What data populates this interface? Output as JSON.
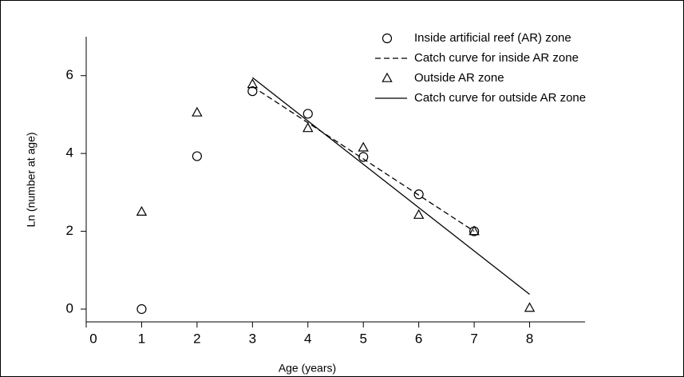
{
  "chart_data": {
    "type": "scatter",
    "x_label": "Age (years)",
    "y_label": "Ln (number at age)",
    "xlim": [
      0,
      9
    ],
    "ylim": [
      -0.3,
      7
    ],
    "xticks": [
      0,
      1,
      2,
      3,
      4,
      5,
      6,
      7,
      8
    ],
    "yticks": [
      0,
      2,
      4,
      6
    ],
    "legend": "top-right",
    "series": [
      {
        "name": "Inside artificial reef (AR) zone",
        "marker": "circle",
        "color": "#000000",
        "x": [
          1,
          2,
          3,
          4,
          5,
          6,
          7
        ],
        "values": [
          0,
          3.93,
          5.6,
          5.02,
          3.91,
          2.95,
          2.0
        ]
      },
      {
        "name": "Catch curve for inside AR zone",
        "line": "dashed",
        "color": "#000000",
        "x": [
          3,
          7
        ],
        "values": [
          5.72,
          2.0
        ]
      },
      {
        "name": "Outside AR zone",
        "marker": "triangle",
        "color": "#000000",
        "x": [
          1,
          2,
          3,
          4,
          5,
          6,
          7,
          8
        ],
        "values": [
          2.5,
          5.05,
          5.78,
          4.65,
          4.15,
          2.42,
          2.0,
          0.03
        ]
      },
      {
        "name": "Catch curve for outside AR zone",
        "line": "solid",
        "color": "#000000",
        "x": [
          3,
          8
        ],
        "values": [
          5.95,
          0.38
        ]
      }
    ]
  }
}
